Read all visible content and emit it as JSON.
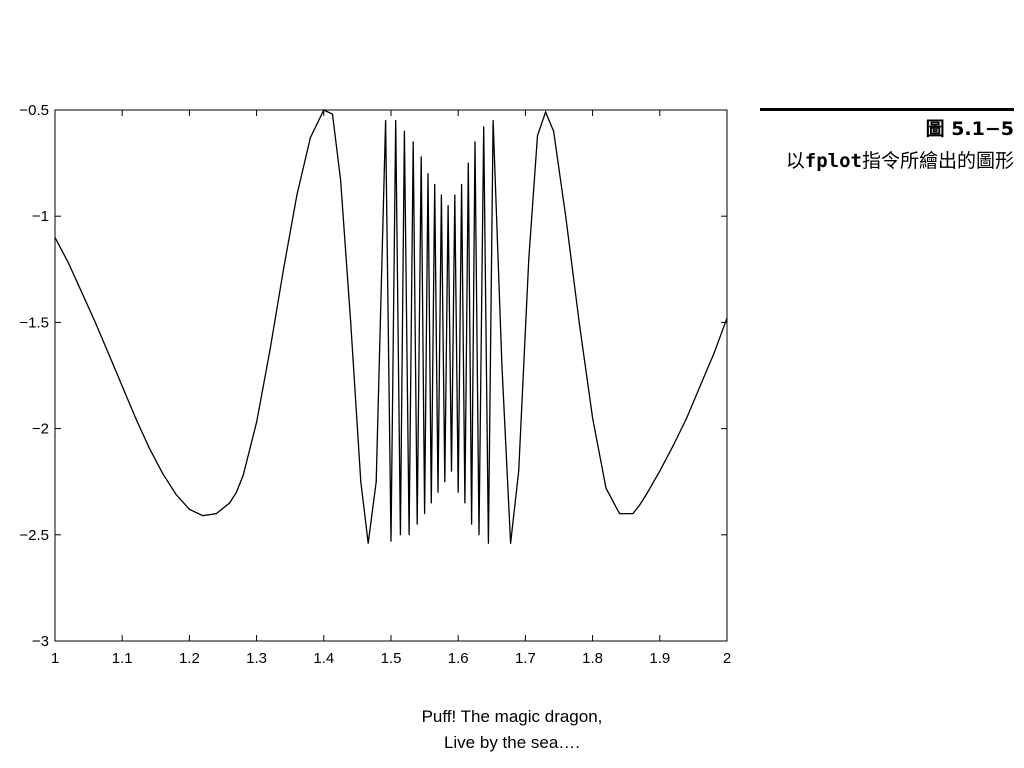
{
  "chart_data": {
    "type": "line",
    "title": "",
    "xlabel": "",
    "ylabel": "",
    "xlim": [
      1,
      2
    ],
    "ylim": [
      -3,
      -0.5
    ],
    "x_ticks": [
      1,
      1.1,
      1.2,
      1.3,
      1.4,
      1.5,
      1.6,
      1.7,
      1.8,
      1.9,
      2
    ],
    "x_tick_labels": [
      "1",
      "1.1",
      "1.2",
      "1.3",
      "1.4",
      "1.5",
      "1.6",
      "1.7",
      "1.8",
      "1.9",
      "2"
    ],
    "y_ticks": [
      -0.5,
      -1,
      -1.5,
      -2,
      -2.5,
      -3
    ],
    "y_tick_labels": [
      "−0.5",
      "−1",
      "−1.5",
      "−2",
      "−2.5",
      "−3"
    ],
    "grid": false,
    "line_color": "#000000",
    "series": [
      {
        "x": [
          1.0,
          1.02,
          1.04,
          1.06,
          1.08,
          1.1,
          1.12,
          1.14,
          1.16,
          1.18,
          1.2,
          1.22,
          1.24,
          1.26,
          1.27,
          1.28,
          1.3,
          1.32,
          1.34,
          1.36,
          1.38,
          1.4,
          1.413,
          1.425,
          1.44,
          1.455,
          1.466,
          1.478,
          1.492,
          1.5,
          1.507,
          1.514,
          1.52,
          1.527,
          1.533,
          1.539,
          1.545,
          1.55,
          1.555,
          1.56,
          1.565,
          1.57,
          1.575,
          1.58,
          1.585,
          1.59,
          1.595,
          1.6,
          1.605,
          1.61,
          1.615,
          1.62,
          1.625,
          1.631,
          1.638,
          1.645,
          1.652,
          1.665,
          1.678,
          1.69,
          1.705,
          1.718,
          1.73,
          1.742,
          1.76,
          1.78,
          1.8,
          1.82,
          1.84,
          1.86,
          1.87,
          1.88,
          1.9,
          1.92,
          1.94,
          1.96,
          1.98,
          2.0
        ],
        "y": [
          -1.1,
          -1.22,
          -1.36,
          -1.5,
          -1.65,
          -1.8,
          -1.95,
          -2.09,
          -2.21,
          -2.31,
          -2.38,
          -2.41,
          -2.4,
          -2.35,
          -2.3,
          -2.22,
          -1.97,
          -1.63,
          -1.25,
          -0.9,
          -0.63,
          -0.5,
          -0.52,
          -0.83,
          -1.5,
          -2.25,
          -2.54,
          -2.25,
          -0.55,
          -2.53,
          -0.55,
          -2.5,
          -0.6,
          -2.5,
          -0.65,
          -2.45,
          -0.72,
          -2.4,
          -0.8,
          -2.35,
          -0.85,
          -2.3,
          -0.9,
          -2.25,
          -0.95,
          -2.2,
          -0.9,
          -2.3,
          -0.85,
          -2.35,
          -0.75,
          -2.45,
          -0.65,
          -2.5,
          -0.58,
          -2.54,
          -0.55,
          -1.7,
          -2.54,
          -2.2,
          -1.2,
          -0.62,
          -0.51,
          -0.6,
          -1.0,
          -1.5,
          -1.95,
          -2.28,
          -2.4,
          -2.4,
          -2.36,
          -2.31,
          -2.2,
          -2.08,
          -1.95,
          -1.8,
          -1.65,
          -1.48
        ]
      }
    ]
  },
  "caption": {
    "figure_label": "圖 5.1−5",
    "text_prefix": "以",
    "text_code": "fplot",
    "text_suffix": "指令所繪出的圖形"
  },
  "footer": {
    "line1": "Puff! The magic dragon,",
    "line2": "Live by the sea…."
  }
}
